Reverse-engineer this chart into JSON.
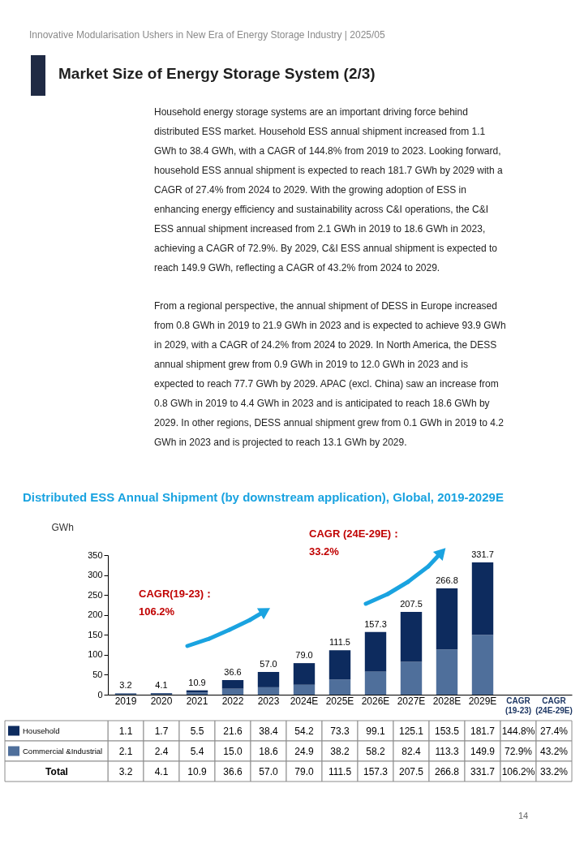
{
  "chart_data": {
    "type": "bar",
    "title": "Distributed ESS Annual Shipment (by downstream application), Global, 2019-2029E",
    "ylabel": "GWh",
    "categories": [
      "2019",
      "2020",
      "2021",
      "2022",
      "2023",
      "2024E",
      "2025E",
      "2026E",
      "2027E",
      "2028E",
      "2029E"
    ],
    "series": [
      {
        "name": "Commercial &Industrial",
        "color": "#4f6f9b",
        "values": [
          2.1,
          2.4,
          5.4,
          15.0,
          18.6,
          24.9,
          38.2,
          58.2,
          82.4,
          113.3,
          149.9
        ],
        "value_labels": [
          "2.1",
          "2.4",
          "5.4",
          "15.0",
          "18.6",
          "24.9",
          "38.2",
          "58.2",
          "82.4",
          "113.3",
          "149.9"
        ]
      },
      {
        "name": "Household",
        "color": "#0d2b5e",
        "values": [
          1.1,
          1.7,
          5.5,
          21.6,
          38.4,
          54.2,
          73.3,
          99.1,
          125.1,
          153.5,
          181.7
        ]
      }
    ],
    "stacked": true,
    "legend": "bottom left",
    "ylim": [
      0,
      350
    ],
    "yticks": [
      0,
      50,
      100,
      150,
      200,
      250,
      300,
      350
    ],
    "data_labels": true,
    "totals": [
      "3.2",
      "4.1",
      "10.9",
      "36.6",
      "57.0",
      "79.0",
      "111.5",
      "157.3",
      "207.5",
      "266.8",
      "331.7"
    ],
    "annotations": [
      "Innovative Modularisation Ushers in New Era of Energy Storage Industry | 2025/05",
      "Market Size of Energy Storage System (2/3)",
      "Household energy storage systems are an important driving force behind\ndistributed ESS market. Household ESS annual shipment increased from 1.1\nGWh to 38.4 GWh, with a CAGR of 144.8% from 2019 to 2023. Looking forward,\nhousehold ESS annual shipment is expected to reach 181.7 GWh by 2029 with a\nCAGR of 27.4% from 2024 to 2029. With the growing adoption of ESS in\nenhancing energy efficiency and sustainability across C&I operations, the C&I\nESS annual shipment increased from 2.1 GWh in 2019 to 18.6 GWh in 2023,\nachieving a CAGR of 72.9%. By 2029, C&I ESS annual shipment is expected to\nreach 149.9 GWh, reflecting a CAGR of 43.2% from 2024 to 2029.",
      "From a regional perspective, the annual shipment of DESS in Europe increased\nfrom 0.8 GWh in 2019 to 21.9 GWh in 2023 and is expected to achieve 93.9 GWh\nin 2029, with a CAGR of 24.2% from 2024 to 2029. In North America, the DESS\nannual shipment grew from 0.9 GWh in 2019 to 12.0 GWh in 2023 and is\nexpected to reach 77.7 GWh by 2029. APAC (excl. China) saw an increase from\n0.8 GWh in 2019 to 4.4 GWh in 2023 and is anticipated to reach 18.6 GWh by\n2029. In other regions, DESS annual shipment grew from 0.1 GWh in 2019 to 4.2\nGWh in 2023 and is projected to reach 13.1 GWh by 2029.",
      "CAGR(19-23)：\n106.2%",
      "CAGR (24E-29E)：\n33.2%",
      "CAGR\n(19-23)",
      "CAGR\n(24E-29E)",
      "144.8%",
      "27.4%",
      "72.9%",
      "43.2%",
      "106.2%",
      "33.2%",
      "Total",
      "14"
    ]
  }
}
